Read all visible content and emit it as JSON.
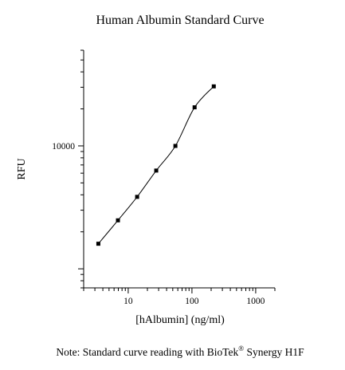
{
  "chart_data": {
    "type": "line",
    "title": "Human Albumin Standard Curve",
    "xlabel": "[hAlbumin] (ng/ml)",
    "ylabel": "RFU",
    "x_scale": "log",
    "y_scale": "log",
    "xlim": [
      2,
      2000
    ],
    "ylim": [
      700,
      60000
    ],
    "x_ticks": [
      10,
      100,
      1000
    ],
    "x_tick_labels": [
      "10",
      "100",
      "1000"
    ],
    "y_ticks": [
      10000
    ],
    "y_tick_labels": [
      "10000"
    ],
    "grid": false,
    "legend": "none",
    "series": [
      {
        "x": [
          3.4,
          6.9,
          13.8,
          27.5,
          55,
          110,
          220
        ],
        "values": [
          1600,
          2480,
          3850,
          6300,
          10000,
          20600,
          30500
        ],
        "color": "#000000",
        "marker": "square"
      }
    ]
  },
  "footnote": {
    "text_before": "Note: Standard curve reading with BioTek",
    "superscript": "®",
    "text_after": " Synergy H1F"
  }
}
